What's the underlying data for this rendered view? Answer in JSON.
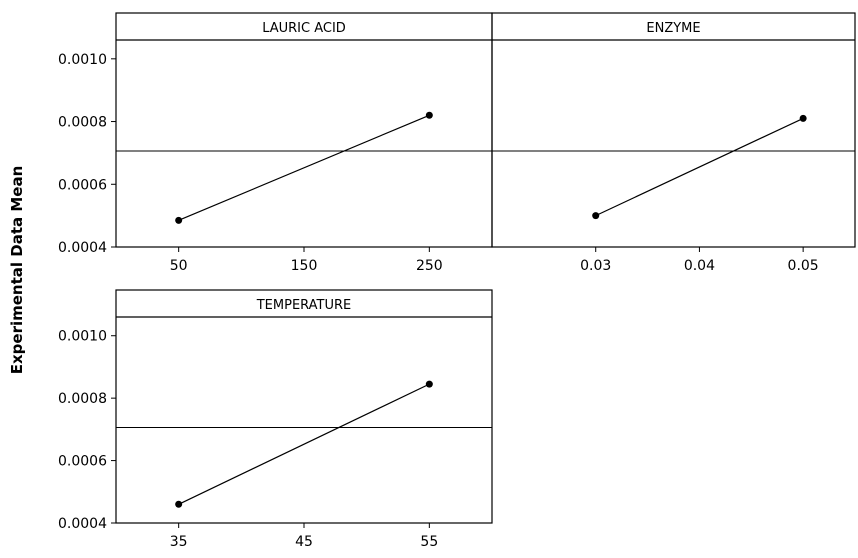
{
  "chart_data": {
    "type": "line",
    "ylabel": "Experimental Data Mean",
    "ylim": [
      0.0004,
      0.00106
    ],
    "yticks": [
      0.0004,
      0.0006,
      0.0008,
      0.001
    ],
    "ytick_labels": [
      "0.0004",
      "0.0006",
      "0.0008",
      "0.0010"
    ],
    "grand_mean": 0.000706,
    "grid": false,
    "colors": {
      "line": "#000000",
      "reference_line": "#000000",
      "panel_background": "#ffffff"
    },
    "panels": [
      {
        "title": "LAURIC ACID",
        "xlim": [
          0,
          300
        ],
        "xticks": [
          50,
          150,
          250
        ],
        "xtick_labels": [
          "50",
          "150",
          "250"
        ],
        "points": [
          {
            "x": 50,
            "y": 0.000485
          },
          {
            "x": 250,
            "y": 0.00082
          }
        ]
      },
      {
        "title": "ENZYME",
        "xlim": [
          0.02,
          0.055
        ],
        "xticks": [
          0.03,
          0.04,
          0.05
        ],
        "xtick_labels": [
          "0.03",
          "0.04",
          "0.05"
        ],
        "points": [
          {
            "x": 0.03,
            "y": 0.0005
          },
          {
            "x": 0.05,
            "y": 0.00081
          }
        ]
      },
      {
        "title": "TEMPERATURE",
        "xlim": [
          30,
          60
        ],
        "xticks": [
          35,
          45,
          55
        ],
        "xtick_labels": [
          "35",
          "45",
          "55"
        ],
        "points": [
          {
            "x": 35,
            "y": 0.00046
          },
          {
            "x": 55,
            "y": 0.000845
          }
        ]
      }
    ]
  }
}
